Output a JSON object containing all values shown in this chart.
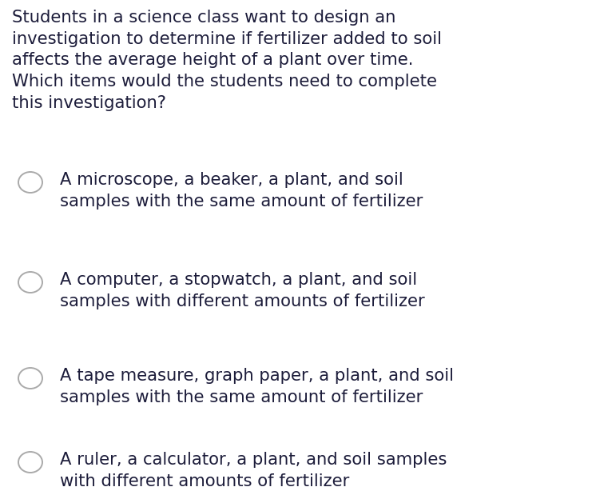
{
  "background_color": "#ffffff",
  "text_color": "#1c1c3a",
  "question_color": "#1c1c3a",
  "question": "Students in a science class want to design an\ninvestigation to determine if fertilizer added to soil\naffects the average height of a plant over time.\nWhich items would the students need to complete\nthis investigation?",
  "options": [
    "A microscope, a beaker, a plant, and soil\nsamples with the same amount of fertilizer",
    "A computer, a stopwatch, a plant, and soil\nsamples with different amounts of fertilizer",
    "A tape measure, graph paper, a plant, and soil\nsamples with the same amount of fertilizer",
    "A ruler, a calculator, a plant, and soil samples\nwith different amounts of fertilizer"
  ],
  "question_fontsize": 15.2,
  "option_fontsize": 15.2,
  "circle_edge_color": "#aaaaaa",
  "circle_lw": 1.4,
  "fig_width": 7.41,
  "fig_height": 6.24,
  "dpi": 100
}
